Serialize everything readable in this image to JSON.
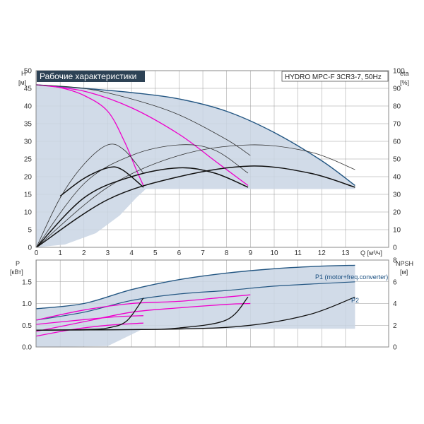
{
  "header": {
    "title": "Рабочие характеристики",
    "model": "HYDRO MPC-F 3CR3-7, 50Hz"
  },
  "axes": {
    "h_symbol": "H",
    "h_unit": "[м]",
    "eta_symbol": "eta",
    "eta_unit": "[%]",
    "q_label": "Q [м³/ч]",
    "p_symbol": "P",
    "p_unit": "[кВт]",
    "npsh_symbol": "NPSH",
    "npsh_unit": "[м]"
  },
  "colors": {
    "envelope_fill": "#c9d5e4",
    "envelope_edge": "#235682",
    "qh_partial": "#ee00cc",
    "efficiency": "#111111",
    "thin_curve": "#333333",
    "grid": "#9a9a9a",
    "title_bg": "#2d4255"
  },
  "chart_data": [
    {
      "type": "line",
      "panel": "head-efficiency",
      "x_ticks": [
        "0",
        "1",
        "2",
        "3",
        "4",
        "5",
        "6",
        "7",
        "8",
        "9",
        "10",
        "11",
        "12",
        "13"
      ],
      "y_ticks": [
        "0",
        "5",
        "10",
        "15",
        "20",
        "25",
        "30",
        "35",
        "40",
        "45",
        "50"
      ],
      "y2_ticks": [
        "0",
        "10",
        "20",
        "30",
        "40",
        "50",
        "60",
        "70",
        "80",
        "90",
        "100"
      ],
      "xlim": [
        0,
        14
      ],
      "ylim": [
        0,
        50
      ],
      "y2lim": [
        0,
        100
      ],
      "grid": true,
      "series": [
        {
          "kind": "envelope",
          "axis": "y",
          "points": [
            [
              0,
              46
            ],
            [
              2,
              45
            ],
            [
              4,
              43.8
            ],
            [
              6,
              42
            ],
            [
              8,
              38.5
            ],
            [
              10,
              32.5
            ],
            [
              12,
              24.5
            ],
            [
              13.4,
              17.5
            ]
          ]
        },
        {
          "kind": "envelope-bottom",
          "axis": "y",
          "points": [
            [
              0,
              0
            ],
            [
              1.2,
              0.8
            ],
            [
              2.5,
              4
            ],
            [
              3.5,
              9
            ],
            [
              4.2,
              14
            ],
            [
              4.6,
              16.5
            ],
            [
              13.4,
              16.5
            ]
          ]
        },
        {
          "kind": "partial-qh",
          "axis": "y",
          "points": [
            [
              0,
              46
            ],
            [
              1,
              45.2
            ],
            [
              2,
              43
            ],
            [
              3,
              38.5
            ],
            [
              3.7,
              30
            ],
            [
              4.2,
              22
            ],
            [
              4.5,
              17.5
            ]
          ]
        },
        {
          "kind": "partial-qh",
          "axis": "y",
          "points": [
            [
              0,
              46
            ],
            [
              2,
              44.2
            ],
            [
              4,
              39.5
            ],
            [
              6,
              32
            ],
            [
              7.5,
              24.5
            ],
            [
              8.9,
              17.5
            ]
          ]
        },
        {
          "kind": "thin-qh",
          "axis": "y",
          "points": [
            [
              0,
              46
            ],
            [
              2,
              45
            ],
            [
              4,
              42
            ],
            [
              6,
              37.5
            ],
            [
              8,
              30.5
            ],
            [
              9,
              26
            ]
          ]
        },
        {
          "kind": "thin-eta",
          "axis": "y2",
          "points": [
            [
              0,
              0
            ],
            [
              1,
              28
            ],
            [
              2,
              47
            ],
            [
              3,
              58
            ],
            [
              3.7,
              55
            ],
            [
              4.5,
              42
            ]
          ]
        },
        {
          "kind": "thin-eta",
          "axis": "y2",
          "points": [
            [
              0,
              0
            ],
            [
              2,
              36
            ],
            [
              4,
              52
            ],
            [
              6,
              58
            ],
            [
              7.5,
              55
            ],
            [
              8.9,
              42
            ]
          ]
        },
        {
          "kind": "thin-eta",
          "axis": "y2",
          "points": [
            [
              0,
              0
            ],
            [
              3,
              34
            ],
            [
              6,
              52
            ],
            [
              9,
              58
            ],
            [
              11.5,
              54
            ],
            [
              13.4,
              44
            ]
          ]
        },
        {
          "kind": "eta",
          "axis": "y2",
          "points": [
            [
              1,
              29
            ],
            [
              2,
              39
            ],
            [
              3,
              45
            ],
            [
              3.6,
              44
            ],
            [
              4.5,
              34
            ]
          ]
        },
        {
          "kind": "eta",
          "axis": "y2",
          "points": [
            [
              0,
              0
            ],
            [
              2,
              28
            ],
            [
              4,
              40
            ],
            [
              6,
              45
            ],
            [
              7.5,
              42
            ],
            [
              8.9,
              34
            ]
          ]
        },
        {
          "kind": "eta",
          "axis": "y2",
          "points": [
            [
              0,
              0
            ],
            [
              3,
              27
            ],
            [
              6,
              40
            ],
            [
              9,
              46
            ],
            [
              11.5,
              42
            ],
            [
              13.4,
              34
            ]
          ]
        }
      ]
    },
    {
      "type": "line",
      "panel": "power-npsh",
      "y_ticks": [
        "0.0",
        "0.5",
        "1.0",
        "1.5"
      ],
      "y2_ticks": [
        "0",
        "2",
        "4",
        "6",
        "8"
      ],
      "ylim": [
        0,
        2.0
      ],
      "y2lim": [
        0,
        8
      ],
      "grid": true,
      "series": [
        {
          "kind": "envelope",
          "axis": "y",
          "name": "P1 (motor+freq.converter)",
          "points": [
            [
              0,
              0.88
            ],
            [
              2,
              1.0
            ],
            [
              4,
              1.32
            ],
            [
              6,
              1.55
            ],
            [
              8,
              1.7
            ],
            [
              10,
              1.8
            ],
            [
              12,
              1.86
            ],
            [
              13.4,
              1.88
            ]
          ]
        },
        {
          "kind": "envelope-bottom",
          "axis": "y",
          "points": [
            [
              0,
              0
            ],
            [
              3,
              0.02
            ],
            [
              4.5,
              0.42
            ],
            [
              13.4,
              0.42
            ]
          ]
        },
        {
          "kind": "p2",
          "axis": "y",
          "name": "P2",
          "points": [
            [
              0,
              0.62
            ],
            [
              2,
              0.8
            ],
            [
              4,
              1.07
            ],
            [
              6,
              1.22
            ],
            [
              8,
              1.3
            ],
            [
              10,
              1.4
            ],
            [
              12,
              1.46
            ],
            [
              13.4,
              1.5
            ]
          ]
        },
        {
          "kind": "partial-p",
          "axis": "y",
          "points": [
            [
              0,
              0.62
            ],
            [
              2,
              0.85
            ],
            [
              4,
              1.0
            ],
            [
              6,
              1.05
            ],
            [
              8,
              1.15
            ],
            [
              9,
              1.2
            ]
          ]
        },
        {
          "kind": "partial-p",
          "axis": "y",
          "points": [
            [
              0,
              0.36
            ],
            [
              2,
              0.58
            ],
            [
              4,
              0.8
            ],
            [
              6,
              0.9
            ],
            [
              8,
              0.98
            ],
            [
              9,
              1.0
            ]
          ]
        },
        {
          "kind": "partial-p",
          "axis": "y",
          "points": [
            [
              0,
              0.25
            ],
            [
              1.5,
              0.4
            ],
            [
              3,
              0.5
            ],
            [
              4.5,
              0.55
            ]
          ]
        },
        {
          "kind": "partial-p",
          "axis": "y",
          "points": [
            [
              0,
              0.52
            ],
            [
              2,
              0.63
            ],
            [
              3.5,
              0.7
            ],
            [
              4.5,
              0.72
            ]
          ]
        },
        {
          "kind": "npsh",
          "axis": "y2",
          "points": [
            [
              0,
              1.55
            ],
            [
              2,
              1.6
            ],
            [
              3,
              1.75
            ],
            [
              3.8,
              2.4
            ],
            [
              4.5,
              4.5
            ]
          ]
        },
        {
          "kind": "npsh",
          "axis": "y2",
          "points": [
            [
              0,
              1.55
            ],
            [
              4,
              1.6
            ],
            [
              6,
              1.75
            ],
            [
              8,
              2.5
            ],
            [
              8.9,
              4.6
            ]
          ]
        },
        {
          "kind": "npsh",
          "axis": "y2",
          "points": [
            [
              0,
              1.55
            ],
            [
              6,
              1.65
            ],
            [
              9,
              2.0
            ],
            [
              11.5,
              3.0
            ],
            [
              13.4,
              4.6
            ]
          ]
        }
      ]
    }
  ]
}
